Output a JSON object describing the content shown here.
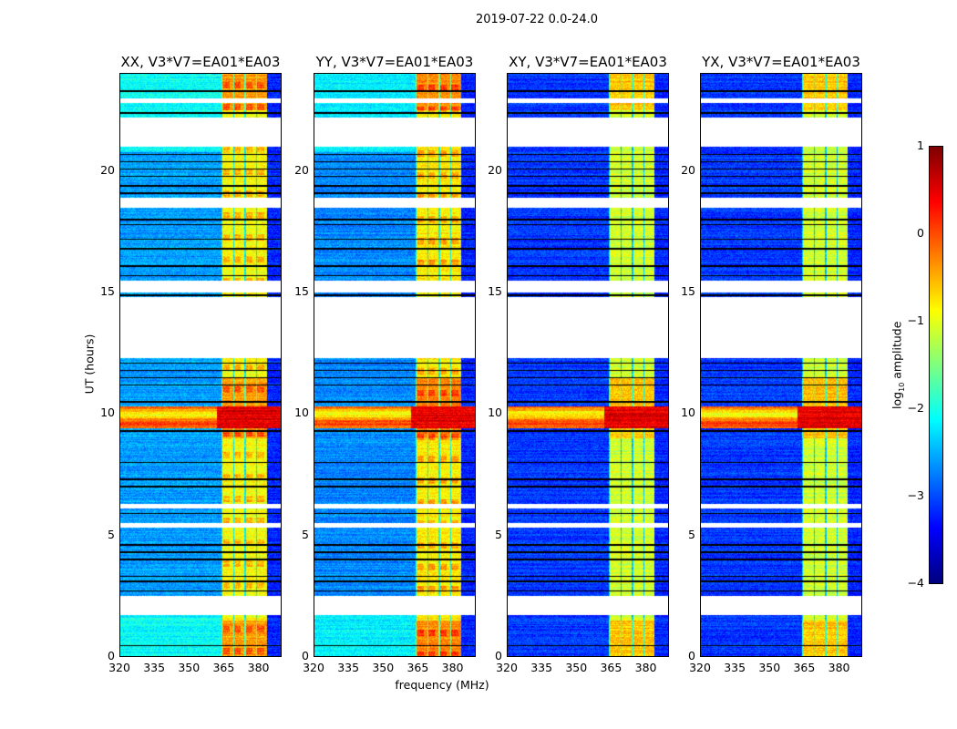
{
  "chart_data": {
    "type": "heatmap",
    "title": "2019-07-22 0.0-24.0",
    "xlabel": "frequency (MHz)",
    "ylabel": "UT (hours)",
    "xlim": [
      320,
      390
    ],
    "ylim": [
      0,
      24
    ],
    "xticks": [
      "320",
      "335",
      "350",
      "365",
      "380"
    ],
    "yticks": [
      "0",
      "5",
      "10",
      "15",
      "20"
    ],
    "panels": [
      {
        "title": "XX, V3*V7=EA01*EA03",
        "base_level": -2.6,
        "band_level": -0.9
      },
      {
        "title": "YY, V3*V7=EA01*EA03",
        "base_level": -2.7,
        "band_level": -0.8
      },
      {
        "title": "XY, V3*V7=EA01*EA03",
        "base_level": -3.1,
        "band_level": -1.1
      },
      {
        "title": "YX, V3*V7=EA01*EA03",
        "base_level": -3.1,
        "band_level": -1.1
      }
    ],
    "rfi_band_mhz": [
      364,
      384
    ],
    "strong_event_hours": [
      9.4,
      10.3
    ],
    "flagged_hours": [
      [
        1.7,
        2.5
      ],
      [
        5.3,
        5.5
      ],
      [
        6.1,
        6.3
      ],
      [
        12.3,
        14.8
      ],
      [
        15.0,
        15.5
      ],
      [
        18.5,
        18.9
      ],
      [
        21.0,
        22.2
      ],
      [
        22.8,
        23.0
      ]
    ],
    "colorbar": {
      "label": "log10 amplitude",
      "label_base": "log",
      "label_sub": "10",
      "label_rest": " amplitude",
      "range": [
        -4,
        1
      ],
      "ticks": [
        "1",
        "0",
        "−1",
        "−2",
        "−3",
        "−4"
      ],
      "colormap": "jet"
    }
  }
}
